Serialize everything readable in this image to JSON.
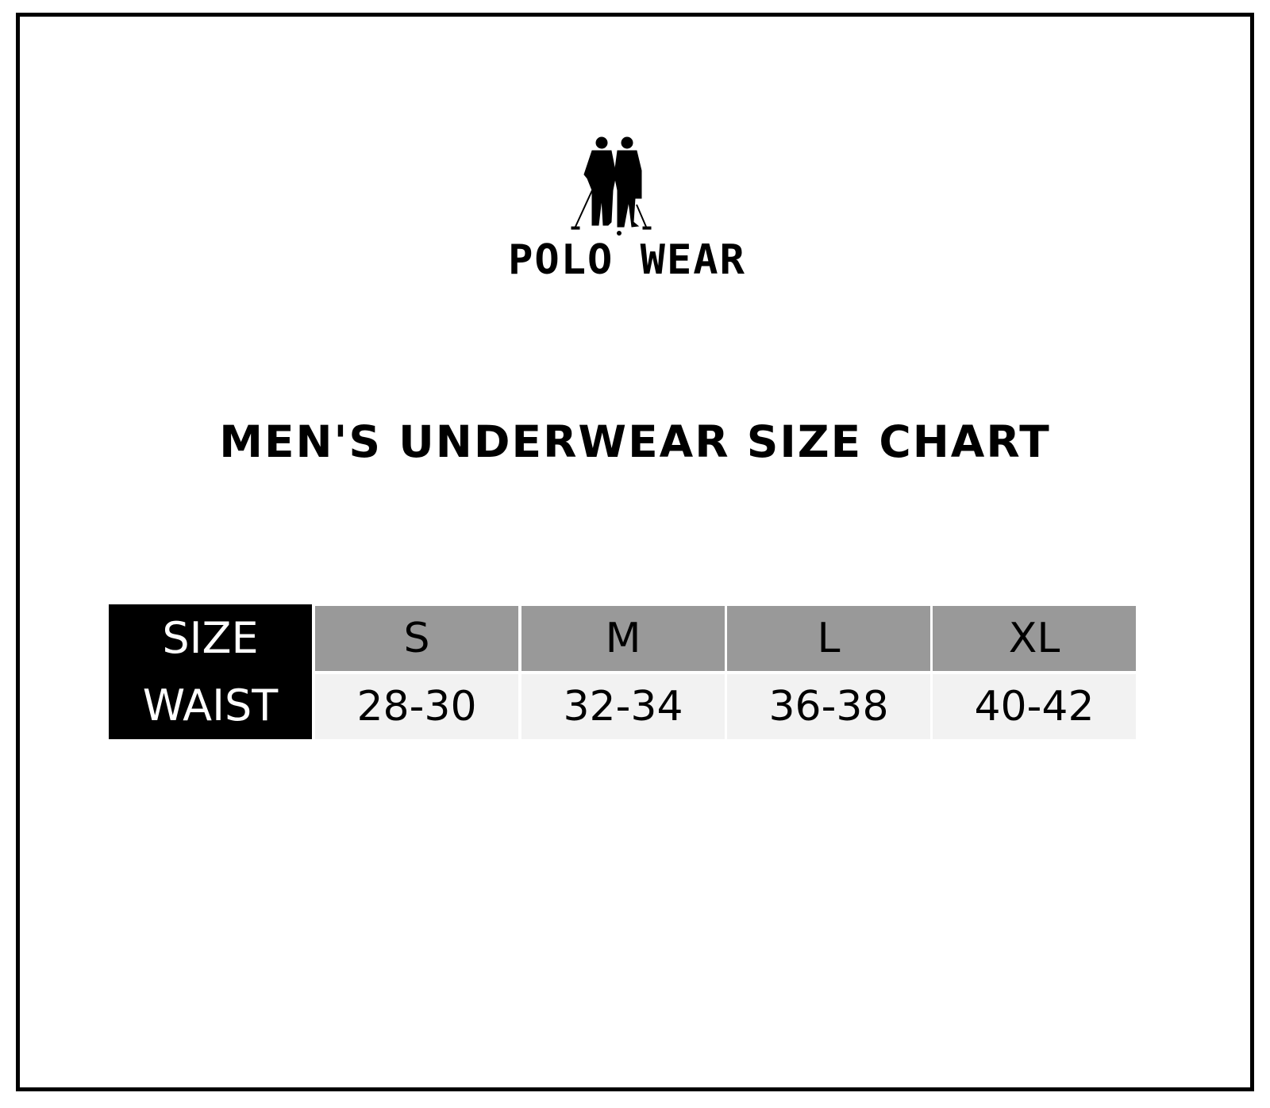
{
  "brand": {
    "name": "POLO WEAR",
    "logo_icon": "polo-players-silhouette-icon"
  },
  "title": "MEN'S UNDERWEAR SIZE CHART",
  "table": {
    "row_labels": [
      "SIZE",
      "WAIST"
    ],
    "sizes": [
      "S",
      "M",
      "L",
      "XL"
    ],
    "waist": [
      "28-30",
      "32-34",
      "36-38",
      "40-42"
    ],
    "colors": {
      "label_bg": "#000000",
      "header_bg": "#999999",
      "value_bg": "#f2f2f2"
    }
  }
}
